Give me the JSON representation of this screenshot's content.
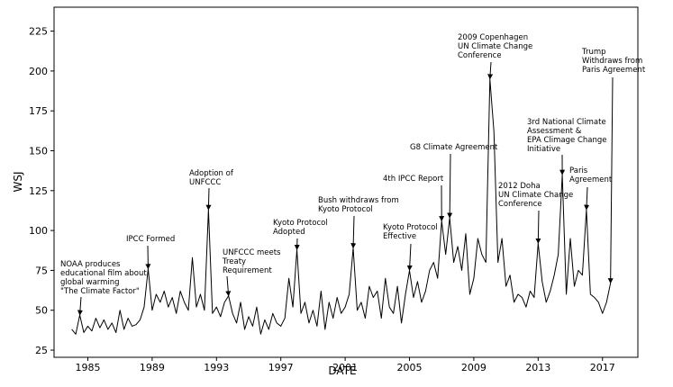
{
  "chart_data": {
    "type": "line",
    "xlabel": "DATE",
    "ylabel": "WSJ",
    "x": [
      1984,
      1984.25,
      1984.5,
      1984.75,
      1985,
      1985.25,
      1985.5,
      1985.75,
      1986,
      1986.25,
      1986.5,
      1986.75,
      1987,
      1987.25,
      1987.5,
      1987.75,
      1988,
      1988.25,
      1988.5,
      1988.75,
      1989,
      1989.25,
      1989.5,
      1989.75,
      1990,
      1990.25,
      1990.5,
      1990.75,
      1991,
      1991.25,
      1991.5,
      1991.75,
      1992,
      1992.25,
      1992.5,
      1992.75,
      1993,
      1993.25,
      1993.5,
      1993.75,
      1994,
      1994.25,
      1994.5,
      1994.75,
      1995,
      1995.25,
      1995.5,
      1995.75,
      1996,
      1996.25,
      1996.5,
      1996.75,
      1997,
      1997.25,
      1997.5,
      1997.75,
      1998,
      1998.25,
      1998.5,
      1998.75,
      1999,
      1999.25,
      1999.5,
      1999.75,
      2000,
      2000.25,
      2000.5,
      2000.75,
      2001,
      2001.25,
      2001.5,
      2001.75,
      2002,
      2002.25,
      2002.5,
      2002.75,
      2003,
      2003.25,
      2003.5,
      2003.75,
      2004,
      2004.25,
      2004.5,
      2004.75,
      2005,
      2005.25,
      2005.5,
      2005.75,
      2006,
      2006.25,
      2006.5,
      2006.75,
      2007,
      2007.25,
      2007.5,
      2007.75,
      2008,
      2008.25,
      2008.5,
      2008.75,
      2009,
      2009.25,
      2009.5,
      2009.75,
      2010,
      2010.25,
      2010.5,
      2010.75,
      2011,
      2011.25,
      2011.5,
      2011.75,
      2012,
      2012.25,
      2012.5,
      2012.75,
      2013,
      2013.25,
      2013.5,
      2013.75,
      2014,
      2014.25,
      2014.5,
      2014.75,
      2015,
      2015.25,
      2015.5,
      2015.75,
      2016,
      2016.25,
      2016.5,
      2016.75,
      2017,
      2017.25,
      2017.5
    ],
    "series": [
      {
        "name": "WSJ",
        "color": "#000000",
        "values": [
          38,
          35,
          47,
          36,
          40,
          37,
          45,
          39,
          44,
          38,
          42,
          36,
          50,
          38,
          45,
          40,
          41,
          44,
          52,
          76,
          50,
          60,
          55,
          62,
          52,
          58,
          48,
          62,
          55,
          50,
          83,
          52,
          60,
          50,
          113,
          48,
          52,
          46,
          55,
          59,
          48,
          42,
          55,
          38,
          46,
          40,
          52,
          35,
          44,
          38,
          48,
          42,
          40,
          45,
          70,
          52,
          88,
          48,
          55,
          42,
          50,
          40,
          62,
          38,
          55,
          45,
          58,
          48,
          52,
          60,
          89,
          50,
          55,
          45,
          65,
          58,
          62,
          45,
          70,
          52,
          48,
          65,
          42,
          60,
          75,
          58,
          68,
          55,
          62,
          75,
          80,
          70,
          106,
          85,
          108,
          80,
          90,
          75,
          98,
          60,
          70,
          95,
          85,
          80,
          195,
          162,
          80,
          95,
          65,
          72,
          55,
          60,
          58,
          52,
          62,
          58,
          92,
          68,
          55,
          62,
          72,
          85,
          135,
          60,
          95,
          65,
          75,
          72,
          113,
          60,
          58,
          55,
          48,
          55,
          67
        ]
      }
    ],
    "xlim": [
      1982.9,
      2019.2
    ],
    "ylim": [
      20.5,
      240
    ],
    "xticks": [
      1985,
      1989,
      1993,
      1997,
      2001,
      2005,
      2009,
      2013,
      2017
    ],
    "yticks": [
      25,
      50,
      75,
      100,
      125,
      150,
      175,
      200,
      225
    ],
    "grid": false,
    "annotations": [
      {
        "lines": [
          "NOAA produces",
          "educational film about",
          "global warming",
          "\"The Climate Factor\""
        ],
        "x": 1984.5,
        "y": 47
      },
      {
        "lines": [
          "IPCC Formed"
        ],
        "x": 1988.75,
        "y": 76
      },
      {
        "lines": [
          "Adoption of",
          "UNFCCC"
        ],
        "x": 1992.5,
        "y": 113
      },
      {
        "lines": [
          "UNFCCC meets",
          "Treaty",
          "Requirement"
        ],
        "x": 1993.75,
        "y": 59
      },
      {
        "lines": [
          "Kyoto Protocol",
          "Adopted"
        ],
        "x": 1998,
        "y": 88
      },
      {
        "lines": [
          "Bush withdraws from",
          "Kyoto Protocol"
        ],
        "x": 2001.5,
        "y": 89
      },
      {
        "lines": [
          "Kyoto Protocol",
          "Effective"
        ],
        "x": 2005,
        "y": 75
      },
      {
        "lines": [
          "4th IPCC Report"
        ],
        "x": 2007,
        "y": 106
      },
      {
        "lines": [
          "G8 Climate Agreement"
        ],
        "x": 2007.5,
        "y": 108
      },
      {
        "lines": [
          "2009 Copenhagen",
          "UN Climate Change",
          "Conference"
        ],
        "x": 2010,
        "y": 195
      },
      {
        "lines": [
          "2012 Doha",
          "UN Climate Change",
          "Conference"
        ],
        "x": 2013,
        "y": 92
      },
      {
        "lines": [
          "3rd National Climate",
          "Assessment &",
          "EPA Climage Change",
          "Initiative"
        ],
        "x": 2014.5,
        "y": 135
      },
      {
        "lines": [
          "Paris",
          "Agreement"
        ],
        "x": 2016,
        "y": 113
      },
      {
        "lines": [
          "Trump",
          "Withdraws from",
          "Paris Agreement"
        ],
        "x": 2017.5,
        "y": 67
      }
    ]
  }
}
